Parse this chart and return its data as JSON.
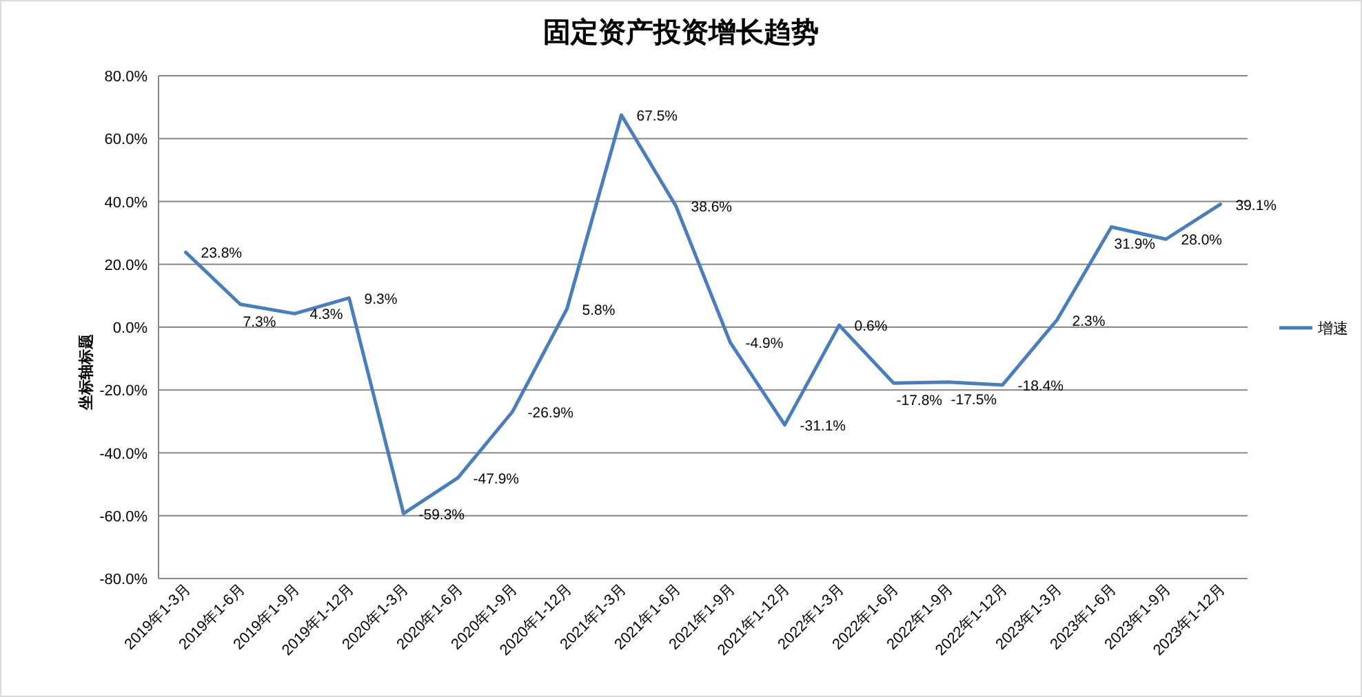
{
  "chart_data": {
    "type": "line",
    "title": "固定资产投资增长趋势",
    "ylabel": "坐标轴标题",
    "categories": [
      "2019年1-3月",
      "2019年1-6月",
      "2019年1-9月",
      "2019年1-12月",
      "2020年1-3月",
      "2020年1-6月",
      "2020年1-9月",
      "2020年1-12月",
      "2021年1-3月",
      "2021年1-6月",
      "2021年1-9月",
      "2021年1-12月",
      "2022年1-3月",
      "2022年1-6月",
      "2022年1-9月",
      "2022年1-12月",
      "2023年1-3月",
      "2023年1-6月",
      "2023年1-9月",
      "2023年1-12月"
    ],
    "series": [
      {
        "name": "增速",
        "color": "#4a7ebb",
        "values": [
          23.8,
          7.3,
          4.3,
          9.3,
          -59.3,
          -47.9,
          -26.9,
          5.8,
          67.5,
          38.6,
          -4.9,
          -31.1,
          0.6,
          -17.8,
          -17.5,
          -18.4,
          2.3,
          31.9,
          28.0,
          39.1
        ],
        "value_labels": [
          "23.8%",
          "7.3%",
          "4.3%",
          "9.3%",
          "-59.3%",
          "-47.9%",
          "-26.9%",
          "5.8%",
          "67.5%",
          "38.6%",
          "-4.9%",
          "-31.1%",
          "0.6%",
          "-17.8%",
          "-17.5%",
          "-18.4%",
          "2.3%",
          "31.9%",
          "28.0%",
          "39.1%"
        ]
      }
    ],
    "ylim": [
      -80,
      80
    ],
    "yticks": [
      {
        "value": -80,
        "label": "-80.0%"
      },
      {
        "value": -60,
        "label": "-60.0%"
      },
      {
        "value": -40,
        "label": "-40.0%"
      },
      {
        "value": -20,
        "label": "-20.0%"
      },
      {
        "value": 0,
        "label": "0.0%"
      },
      {
        "value": 20,
        "label": "20.0%"
      },
      {
        "value": 40,
        "label": "40.0%"
      },
      {
        "value": 60,
        "label": "60.0%"
      },
      {
        "value": 80,
        "label": "80.0%"
      }
    ],
    "grid": "y",
    "legend": "right",
    "marker": "none",
    "line_style": "solid"
  }
}
